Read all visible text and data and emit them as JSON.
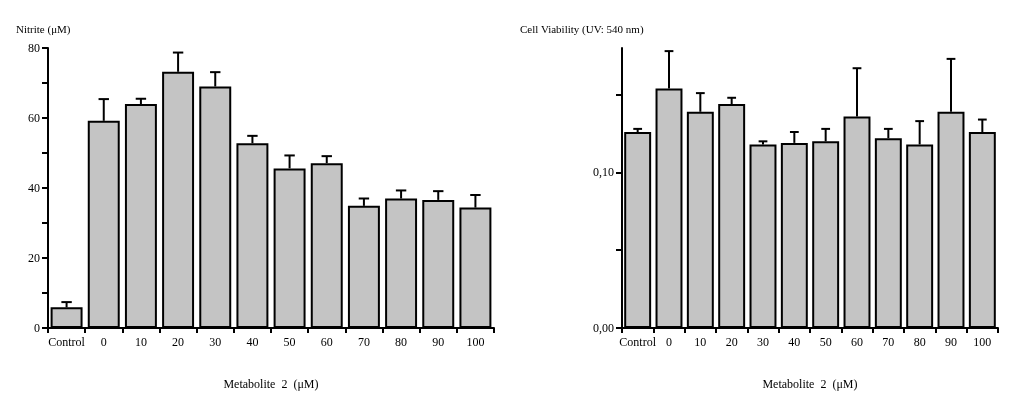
{
  "chart_data": [
    {
      "type": "bar",
      "ylabel": "Nitrite (μM)",
      "xlabel": "Metabolite  2  (μM)",
      "categories": [
        "Control",
        "0",
        "10",
        "20",
        "30",
        "40",
        "50",
        "60",
        "70",
        "80",
        "90",
        "100"
      ],
      "values": [
        5.9,
        59.2,
        64.0,
        73.2,
        69.0,
        52.8,
        45.6,
        47.1,
        34.9,
        37.0,
        36.6,
        34.4
      ],
      "errors": [
        [
          5.9,
          7.4
        ],
        [
          59.2,
          65.4
        ],
        [
          64.0,
          65.5
        ],
        [
          73.2,
          78.7
        ],
        [
          69.0,
          73.1
        ],
        [
          52.8,
          54.9
        ],
        [
          45.6,
          49.3
        ],
        [
          47.1,
          49.1
        ],
        [
          34.9,
          37.0
        ],
        [
          37.0,
          39.3
        ],
        [
          36.6,
          39.1
        ],
        [
          34.4,
          38.0
        ]
      ],
      "color": "#c4c4c4",
      "ylim": [
        0,
        80
      ],
      "yticks": [
        0,
        {
          "value": 10,
          "label": null
        },
        20,
        {
          "value": 30,
          "label": null
        },
        40,
        {
          "value": 50,
          "label": null
        },
        60,
        {
          "value": 70,
          "label": null
        },
        80
      ],
      "grid": false
    },
    {
      "type": "bar",
      "ylabel": "Cell Viability (UV: 540 nm)",
      "xlabel": "Metabolite  2  (μM)",
      "categories": [
        "Control",
        "0",
        "10",
        "20",
        "30",
        "40",
        "50",
        "60",
        "70",
        "80",
        "90",
        "100"
      ],
      "values": [
        0.126,
        0.154,
        0.139,
        0.144,
        0.118,
        0.119,
        0.12,
        0.136,
        0.122,
        0.118,
        0.139,
        0.126
      ],
      "errors": [
        [
          0.126,
          0.128
        ],
        [
          0.154,
          0.178
        ],
        [
          0.139,
          0.151
        ],
        [
          0.144,
          0.148
        ],
        [
          0.118,
          0.12
        ],
        [
          0.119,
          0.126
        ],
        [
          0.12,
          0.128
        ],
        [
          0.136,
          0.167
        ],
        [
          0.122,
          0.128
        ],
        [
          0.118,
          0.133
        ],
        [
          0.139,
          0.173
        ],
        [
          0.126,
          0.134
        ]
      ],
      "color": "#c4c4c4",
      "ylim": [
        0,
        0.18
      ],
      "yticks": [
        {
          "value": 0,
          "label": "0,00"
        },
        {
          "value": 0.05,
          "label": null
        },
        {
          "value": 0.1,
          "label": "0,10"
        },
        {
          "value": 0.15,
          "label": null
        }
      ],
      "grid": false
    }
  ]
}
